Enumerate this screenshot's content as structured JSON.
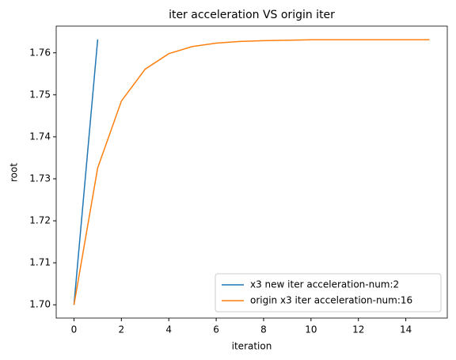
{
  "chart_data": {
    "type": "line",
    "title": "iter acceleration VS origin iter",
    "x_label": "iteration",
    "y_label": "root",
    "series": [
      {
        "name": "x3 new iter acceleration-num:2",
        "color": "#1f77b4",
        "x": [
          0,
          1
        ],
        "values": [
          1.7,
          1.7632
        ]
      },
      {
        "name": "origin x3 iter acceleration-num:16",
        "color": "#ff7f0e",
        "x": [
          0,
          1,
          2,
          3,
          4,
          5,
          6,
          7,
          8,
          9,
          10,
          11,
          12,
          13,
          14,
          15
        ],
        "values": [
          1.7,
          1.7326,
          1.7485,
          1.7561,
          1.7598,
          1.7615,
          1.7623,
          1.7627,
          1.7629,
          1.763,
          1.7631,
          1.7631,
          1.7631,
          1.7631,
          1.7631,
          1.7631
        ]
      }
    ],
    "xlim": [
      -0.75,
      15.75
    ],
    "xticks": [
      0,
      2,
      4,
      6,
      8,
      10,
      12,
      14
    ],
    "ylim": [
      1.69684,
      1.76636
    ],
    "yticks": [
      {
        "value": 1.7,
        "label": "1.70"
      },
      {
        "value": 1.71,
        "label": "1.71"
      },
      {
        "value": 1.72,
        "label": "1.72"
      },
      {
        "value": 1.73,
        "label": "1.73"
      },
      {
        "value": 1.74,
        "label": "1.74"
      },
      {
        "value": 1.75,
        "label": "1.75"
      },
      {
        "value": 1.76,
        "label": "1.76"
      }
    ],
    "legend": "lower right",
    "grid": false
  }
}
